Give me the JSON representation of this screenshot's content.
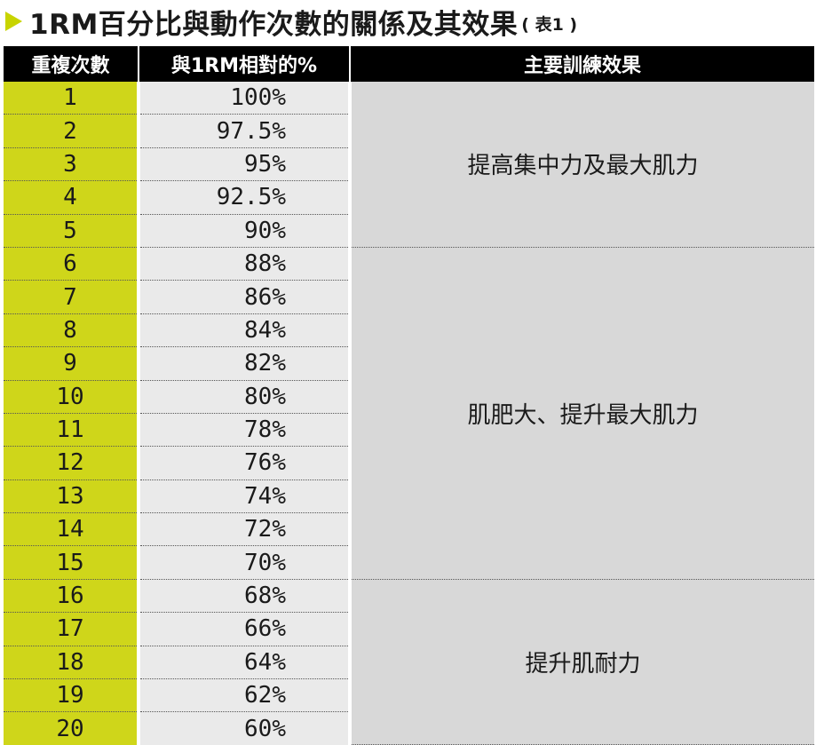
{
  "title": {
    "main": "1RM百分比與動作次數的關係及其效果",
    "sub": "( 表1 )"
  },
  "table": {
    "headers": [
      "重複次數",
      "與1RM相對的%",
      "主要訓練效果"
    ],
    "rows": [
      {
        "reps": "1",
        "pct": "100%"
      },
      {
        "reps": "2",
        "pct": "97.5%"
      },
      {
        "reps": "3",
        "pct": "95%"
      },
      {
        "reps": "4",
        "pct": "92.5%"
      },
      {
        "reps": "5",
        "pct": "90%"
      },
      {
        "reps": "6",
        "pct": "88%"
      },
      {
        "reps": "7",
        "pct": "86%"
      },
      {
        "reps": "8",
        "pct": "84%"
      },
      {
        "reps": "9",
        "pct": "82%"
      },
      {
        "reps": "10",
        "pct": "80%"
      },
      {
        "reps": "11",
        "pct": "78%"
      },
      {
        "reps": "12",
        "pct": "76%"
      },
      {
        "reps": "13",
        "pct": "74%"
      },
      {
        "reps": "14",
        "pct": "72%"
      },
      {
        "reps": "15",
        "pct": "70%"
      },
      {
        "reps": "16",
        "pct": "68%"
      },
      {
        "reps": "17",
        "pct": "66%"
      },
      {
        "reps": "18",
        "pct": "64%"
      },
      {
        "reps": "19",
        "pct": "62%"
      },
      {
        "reps": "20",
        "pct": "60%"
      }
    ],
    "effects": [
      {
        "label": "提高集中力及最大肌力",
        "span": 5
      },
      {
        "label": "肌肥大、提升最大肌力",
        "span": 10
      },
      {
        "label": "提升肌耐力",
        "span": 5
      }
    ]
  },
  "colors": {
    "accent": "#cfd61a",
    "header_bg": "#000000",
    "pct_bg": "#eaeaea",
    "effect_bg": "#d8d8d8"
  }
}
